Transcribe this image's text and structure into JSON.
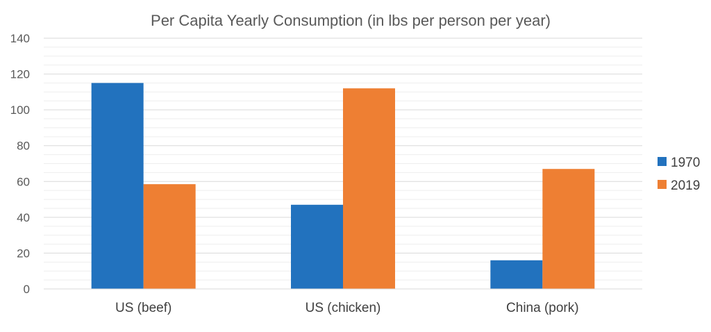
{
  "chart_data": {
    "type": "bar",
    "title": "Per Capita Yearly Consumption (in lbs per person per year)",
    "xlabel": "",
    "ylabel": "",
    "categories": [
      "US (beef)",
      "US (chicken)",
      "China (pork)"
    ],
    "series": [
      {
        "name": "1970",
        "values": [
          115,
          47,
          16
        ],
        "color": "#2272BE"
      },
      {
        "name": "2019",
        "values": [
          58.5,
          112,
          67
        ],
        "color": "#EE7F33"
      }
    ],
    "ylim": [
      0,
      140
    ],
    "yticks": [
      0,
      20,
      40,
      60,
      80,
      100,
      120,
      140
    ],
    "ytick_labels": [
      "0",
      "20",
      "40",
      "60",
      "80",
      "100",
      "120",
      "140"
    ],
    "grid": true,
    "minor_grid": true,
    "legend_position": "right"
  }
}
